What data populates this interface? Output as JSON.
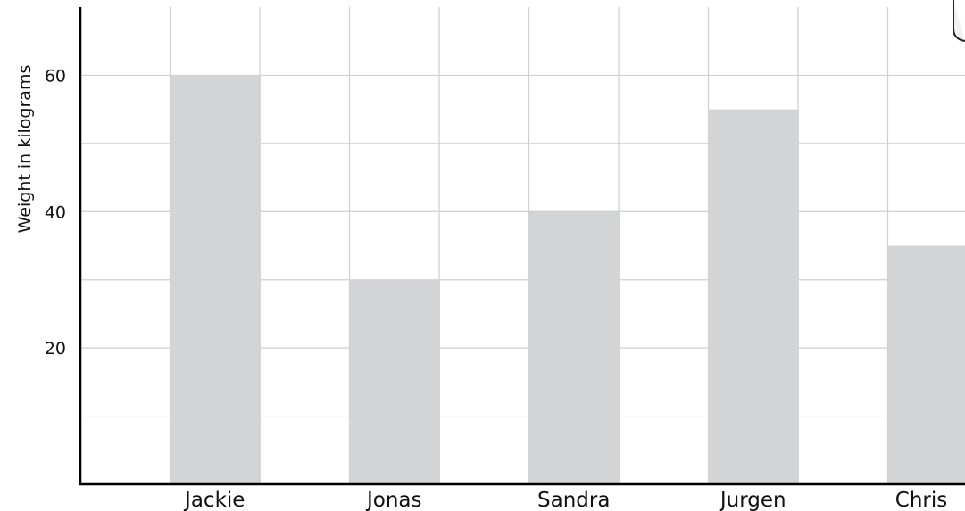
{
  "chart_data": {
    "type": "bar",
    "categories": [
      "Jackie",
      "Jonas",
      "Sandra",
      "Jurgen",
      "Chris"
    ],
    "values": [
      60,
      30,
      40,
      55,
      35
    ],
    "ylabel": "Weight in kilograms",
    "xlabel": "",
    "yticks": [
      "20",
      "40",
      "60"
    ],
    "ylim": [
      0,
      70
    ],
    "grid": true,
    "colors": {
      "bar": "#d3d4d6",
      "grid": "#cfcfcf",
      "axis": "#000000"
    }
  }
}
